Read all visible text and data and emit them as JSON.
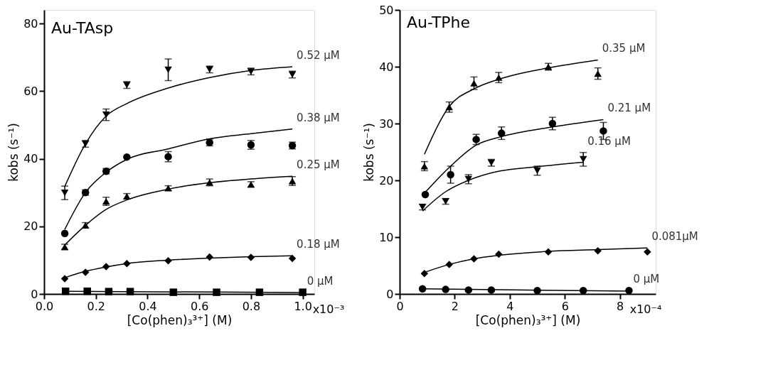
{
  "chart_data": [
    {
      "type": "scatter",
      "title": "Au-TAsp",
      "xlabel": "[Co(phen)₃³⁺] (M)",
      "ylabel": "kobs (s⁻¹)",
      "xlim": [
        0,
        1.045
      ],
      "ylim": [
        0,
        84
      ],
      "xticks": [
        {
          "value": 0,
          "label": "0.0"
        },
        0.2,
        0.4,
        0.6,
        0.8,
        {
          "value": 1.0,
          "label": "1.0"
        }
      ],
      "yticks": [
        0,
        20,
        40,
        60,
        80
      ],
      "grid": false,
      "annotations": [
        "x10⁻³"
      ],
      "series": [
        {
          "name": "0.52 μM",
          "marker": "triangle-down",
          "color": "#000000",
          "x": [
            0.08,
            0.16,
            0.24,
            0.32,
            0.48,
            0.64,
            0.8,
            0.96
          ],
          "values": [
            29.9,
            44.4,
            53.0,
            61.8,
            66.3,
            66.4,
            65.8,
            64.9
          ],
          "errors": [
            2,
            1,
            1.7,
            1,
            3.2,
            1,
            1,
            1
          ]
        },
        {
          "type": "line",
          "color": "#000000",
          "x": [
            0.08,
            0.16,
            0.24,
            0.32,
            0.48,
            0.64,
            0.8,
            0.96
          ],
          "values": [
            31.8,
            44.4,
            52.6,
            56.3,
            60.9,
            64.0,
            66.1,
            67.2
          ]
        },
        {
          "name": "0.38 μM",
          "marker": "circle",
          "color": "#000000",
          "x": [
            0.08,
            0.16,
            0.24,
            0.32,
            0.48,
            0.64,
            0.8,
            0.96
          ],
          "values": [
            17.9,
            30.0,
            36.3,
            40.5,
            40.6,
            44.8,
            44.1,
            43.9
          ],
          "errors": [
            null,
            0.8,
            0.8,
            null,
            1.5,
            1,
            1.3,
            1
          ]
        },
        {
          "type": "line",
          "color": "#000000",
          "x": [
            0.08,
            0.16,
            0.24,
            0.32,
            0.48,
            0.64,
            0.8,
            0.96
          ],
          "values": [
            19.1,
            30.0,
            36.0,
            39.8,
            42.9,
            45.9,
            47.4,
            48.8
          ]
        },
        {
          "name": "0.25 μM",
          "marker": "triangle",
          "color": "#000000",
          "x": [
            0.08,
            0.16,
            0.24,
            0.32,
            0.48,
            0.64,
            0.8,
            0.96
          ],
          "values": [
            13.9,
            20.3,
            27.4,
            28.9,
            31.3,
            33.0,
            32.4,
            33.4
          ],
          "errors": [
            0.8,
            0.8,
            1.2,
            0.8,
            0.7,
            1.0,
            0.8,
            1.3
          ]
        },
        {
          "type": "line",
          "color": "#000000",
          "x": [
            0.08,
            0.16,
            0.24,
            0.32,
            0.48,
            0.64,
            0.8,
            0.96
          ],
          "values": [
            14.5,
            20.3,
            25.0,
            27.8,
            31.0,
            32.9,
            34.0,
            34.8
          ]
        },
        {
          "name": "0.18 μM",
          "marker": "diamond",
          "color": "#000000",
          "x": [
            0.08,
            0.16,
            0.24,
            0.32,
            0.48,
            0.64,
            0.8,
            0.96
          ],
          "values": [
            4.5,
            6.4,
            8.1,
            9.0,
            9.8,
            10.9,
            10.8,
            10.5
          ]
        },
        {
          "type": "line",
          "color": "#000000",
          "x": [
            0.08,
            0.16,
            0.24,
            0.32,
            0.48,
            0.64,
            0.8,
            0.96
          ],
          "values": [
            4.8,
            6.7,
            8.0,
            9.0,
            10.0,
            10.6,
            11.0,
            11.3
          ]
        },
        {
          "name": "0 μM",
          "marker": "square",
          "color": "#000000",
          "x": [
            0.083,
            0.167,
            0.25,
            0.333,
            0.5,
            0.667,
            0.833,
            1.0
          ],
          "values": [
            0.8,
            0.8,
            0.7,
            0.7,
            0.5,
            0.5,
            0.5,
            0.5
          ]
        },
        {
          "type": "line",
          "color": "#000000",
          "x": [
            0.083,
            1.0
          ],
          "values": [
            0.8,
            0.4
          ]
        }
      ]
    },
    {
      "type": "scatter",
      "title": "Au-TPhe",
      "xlabel": "[Co(phen)₃³⁺] (M)",
      "ylabel": "kobs (s⁻¹)",
      "xlim": [
        0,
        9.3
      ],
      "ylim": [
        0,
        50
      ],
      "xticks": [
        0,
        2,
        4,
        6,
        8
      ],
      "yticks": [
        0,
        10,
        20,
        30,
        40,
        50
      ],
      "grid": false,
      "annotations": [
        "x10⁻⁴"
      ],
      "series": [
        {
          "name": "0.35 μM",
          "marker": "triangle",
          "color": "#000000",
          "x": [
            0.9,
            1.8,
            2.7,
            3.6,
            5.4,
            7.2
          ],
          "values": [
            22.5,
            32.9,
            37.1,
            38.1,
            40.0,
            38.8
          ],
          "errors": [
            0.8,
            0.9,
            1.1,
            0.9,
            0.6,
            1.0
          ]
        },
        {
          "type": "line",
          "color": "#000000",
          "x": [
            0.9,
            1.8,
            2.7,
            3.6,
            5.4,
            7.2
          ],
          "values": [
            24.6,
            33.0,
            36.1,
            37.8,
            39.8,
            41.2
          ]
        },
        {
          "name": "0.21 μM",
          "marker": "circle",
          "color": "#000000",
          "x": [
            0.93,
            1.85,
            2.78,
            3.7,
            5.55,
            7.4
          ],
          "values": [
            17.5,
            21.0,
            27.2,
            28.3,
            30.0,
            28.7
          ],
          "errors": [
            null,
            1.5,
            0.9,
            1.1,
            1.1,
            1.5
          ]
        },
        {
          "type": "line",
          "color": "#000000",
          "x": [
            0.93,
            1.85,
            2.78,
            3.7,
            5.55,
            7.4
          ],
          "values": [
            17.9,
            22.5,
            26.2,
            27.7,
            29.4,
            30.7
          ]
        },
        {
          "name": "0.16 μM",
          "marker": "triangle-down",
          "color": "#000000",
          "x": [
            0.83,
            1.67,
            2.5,
            3.33,
            5.0,
            6.67
          ],
          "values": [
            15.3,
            16.3,
            20.2,
            23.1,
            21.7,
            23.7
          ],
          "errors": [
            0.5,
            0.5,
            0.8,
            0.6,
            0.8,
            1.2
          ]
        },
        {
          "type": "line",
          "color": "#000000",
          "x": [
            0.83,
            1.67,
            2.5,
            3.33,
            5.0,
            6.67
          ],
          "values": [
            14.6,
            18.0,
            20.0,
            21.3,
            22.4,
            23.2
          ]
        },
        {
          "name": "0.081μM",
          "marker": "diamond",
          "color": "#000000",
          "x": [
            0.9,
            1.8,
            2.7,
            3.6,
            5.4,
            7.2,
            9.0
          ],
          "values": [
            3.6,
            5.2,
            6.2,
            7.0,
            7.4,
            7.6,
            7.4
          ]
        },
        {
          "type": "line",
          "color": "#000000",
          "x": [
            0.9,
            1.8,
            2.7,
            3.6,
            5.4,
            7.2,
            9.0
          ],
          "values": [
            3.8,
            5.2,
            6.2,
            6.8,
            7.5,
            7.8,
            8.1
          ]
        },
        {
          "name": "0 μM",
          "marker": "circle",
          "color": "#000000",
          "x": [
            0.83,
            1.67,
            2.5,
            3.33,
            5.0,
            6.67,
            8.33
          ],
          "values": [
            0.9,
            0.8,
            0.7,
            0.7,
            0.6,
            0.6,
            0.6
          ]
        },
        {
          "type": "line",
          "color": "#000000",
          "x": [
            0.83,
            8.33
          ],
          "values": [
            0.9,
            0.5
          ]
        }
      ]
    }
  ]
}
